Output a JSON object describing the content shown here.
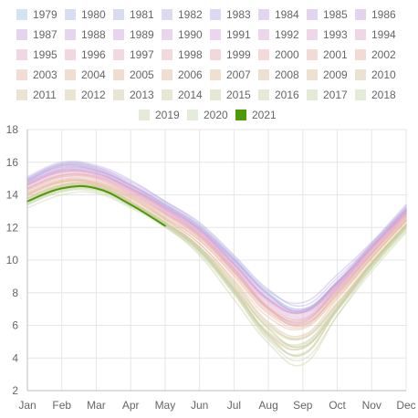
{
  "chart_data": {
    "type": "line",
    "title": "",
    "xlabel": "",
    "ylabel": "",
    "categories": [
      "Jan",
      "Feb",
      "Mar",
      "Apr",
      "May",
      "Jun",
      "Jul",
      "Aug",
      "Sep",
      "Oct",
      "Nov",
      "Dec"
    ],
    "y_ticks": [
      "2",
      "4",
      "6",
      "8",
      "10",
      "12",
      "14",
      "16",
      "18"
    ],
    "ylim": [
      2,
      18
    ],
    "grid": true,
    "legend_position": "top",
    "highlight_color": "#4e9a06",
    "series": [
      {
        "name": "1979",
        "color": "#9fbfe0",
        "values": [
          14.9,
          15.8,
          15.6,
          14.6,
          13.4,
          12.1,
          10.1,
          8.0,
          7.0,
          8.6,
          10.8,
          13.1
        ]
      },
      {
        "name": "1980",
        "color": "#a6b9e2",
        "values": [
          14.8,
          15.8,
          15.5,
          14.6,
          13.4,
          12.0,
          10.0,
          7.9,
          7.0,
          8.7,
          10.9,
          13.2
        ]
      },
      {
        "name": "1981",
        "color": "#acb3e2",
        "values": [
          14.9,
          15.7,
          15.5,
          14.5,
          13.3,
          11.9,
          10.0,
          7.9,
          6.8,
          8.6,
          10.8,
          13.0
        ]
      },
      {
        "name": "1982",
        "color": "#b2addf",
        "values": [
          15.0,
          15.9,
          15.7,
          14.8,
          13.6,
          12.2,
          10.2,
          8.1,
          7.4,
          9.1,
          11.1,
          13.4
        ]
      },
      {
        "name": "1983",
        "color": "#b8a8e0",
        "values": [
          15.1,
          16.0,
          15.8,
          14.9,
          13.6,
          12.3,
          10.3,
          8.2,
          7.2,
          8.9,
          11.0,
          13.3
        ]
      },
      {
        "name": "1984",
        "color": "#bda4e2",
        "values": [
          14.7,
          15.6,
          15.4,
          14.4,
          13.3,
          11.9,
          9.9,
          7.7,
          6.9,
          8.6,
          10.8,
          13.1
        ]
      },
      {
        "name": "1985",
        "color": "#c2a1e2",
        "values": [
          14.8,
          15.7,
          15.5,
          14.6,
          13.4,
          12.0,
          10.0,
          7.8,
          6.9,
          8.6,
          10.9,
          13.1
        ]
      },
      {
        "name": "1986",
        "color": "#c49fe0",
        "values": [
          15.0,
          15.9,
          15.7,
          14.7,
          13.5,
          12.1,
          10.1,
          7.9,
          6.9,
          8.7,
          11.0,
          13.2
        ]
      },
      {
        "name": "1987",
        "color": "#c79fdf",
        "values": [
          14.9,
          15.8,
          15.6,
          14.6,
          13.3,
          11.9,
          9.8,
          7.6,
          6.8,
          8.5,
          10.8,
          13.0
        ]
      },
      {
        "name": "1988",
        "color": "#cba1dd",
        "values": [
          14.7,
          15.5,
          15.4,
          14.4,
          13.2,
          11.8,
          9.8,
          7.6,
          6.8,
          8.6,
          10.8,
          13.1
        ]
      },
      {
        "name": "1989",
        "color": "#cfa2dc",
        "values": [
          14.6,
          15.5,
          15.3,
          14.4,
          13.2,
          11.9,
          9.8,
          7.6,
          6.7,
          8.4,
          10.7,
          12.9
        ]
      },
      {
        "name": "1990",
        "color": "#d3a3db",
        "values": [
          14.6,
          15.4,
          15.3,
          14.3,
          13.1,
          11.6,
          9.5,
          7.1,
          6.2,
          8.3,
          10.6,
          12.9
        ]
      },
      {
        "name": "1991",
        "color": "#d6a4d8",
        "values": [
          14.7,
          15.5,
          15.3,
          14.4,
          13.1,
          11.7,
          9.6,
          7.4,
          6.5,
          8.3,
          10.7,
          12.9
        ]
      },
      {
        "name": "1992",
        "color": "#d9a5d4",
        "values": [
          14.8,
          15.6,
          15.5,
          14.5,
          13.2,
          11.8,
          9.7,
          7.6,
          6.8,
          8.5,
          10.8,
          13.0
        ]
      },
      {
        "name": "1993",
        "color": "#dca5cf",
        "values": [
          14.6,
          15.4,
          15.3,
          14.4,
          13.2,
          11.8,
          9.7,
          7.5,
          6.6,
          8.4,
          10.7,
          12.9
        ]
      },
      {
        "name": "1994",
        "color": "#dfa6ca",
        "values": [
          14.5,
          15.3,
          15.2,
          14.3,
          13.0,
          11.6,
          9.5,
          7.3,
          6.4,
          8.3,
          10.6,
          12.8
        ]
      },
      {
        "name": "1995",
        "color": "#e1a7c5",
        "values": [
          14.4,
          15.2,
          15.1,
          14.2,
          12.9,
          11.5,
          9.3,
          7.0,
          6.0,
          8.0,
          10.4,
          12.7
        ]
      },
      {
        "name": "1996",
        "color": "#e3a8c0",
        "values": [
          14.6,
          15.4,
          15.2,
          14.3,
          13.1,
          11.7,
          9.7,
          7.5,
          6.8,
          8.5,
          10.8,
          13.0
        ]
      },
      {
        "name": "1997",
        "color": "#e4a9bb",
        "values": [
          14.3,
          15.1,
          15.0,
          14.1,
          12.9,
          11.5,
          9.4,
          7.1,
          6.2,
          8.2,
          10.5,
          12.8
        ]
      },
      {
        "name": "1998",
        "color": "#e5aab5",
        "values": [
          14.4,
          15.2,
          15.1,
          14.2,
          13.0,
          11.6,
          9.5,
          7.2,
          6.4,
          8.2,
          10.5,
          12.8
        ]
      },
      {
        "name": "1999",
        "color": "#e6abb0",
        "values": [
          14.3,
          15.1,
          15.0,
          14.0,
          12.8,
          11.4,
          9.3,
          7.0,
          6.1,
          8.0,
          10.4,
          12.6
        ]
      },
      {
        "name": "2000",
        "color": "#e6acab",
        "values": [
          14.4,
          15.2,
          15.1,
          14.1,
          12.9,
          11.5,
          9.4,
          7.1,
          6.3,
          8.1,
          10.4,
          12.7
        ]
      },
      {
        "name": "2001",
        "color": "#e6aea6",
        "values": [
          14.2,
          15.0,
          14.9,
          14.0,
          12.8,
          11.4,
          9.3,
          7.0,
          6.3,
          8.1,
          10.4,
          12.6
        ]
      },
      {
        "name": "2002",
        "color": "#e5b0a2",
        "values": [
          14.1,
          14.9,
          14.8,
          13.9,
          12.7,
          11.3,
          9.2,
          6.9,
          6.0,
          7.9,
          10.3,
          12.5
        ]
      },
      {
        "name": "2003",
        "color": "#e4b29e",
        "values": [
          14.0,
          14.8,
          14.7,
          13.8,
          12.6,
          11.2,
          9.1,
          6.8,
          6.1,
          7.9,
          10.2,
          12.4
        ]
      },
      {
        "name": "2004",
        "color": "#e3b49b",
        "values": [
          14.1,
          14.9,
          14.8,
          13.9,
          12.6,
          11.2,
          9.0,
          6.7,
          5.9,
          7.8,
          10.2,
          12.5
        ]
      },
      {
        "name": "2005",
        "color": "#e2b699",
        "values": [
          14.0,
          14.8,
          14.7,
          13.8,
          12.5,
          11.0,
          8.7,
          6.2,
          5.4,
          7.6,
          10.1,
          12.4
        ]
      },
      {
        "name": "2006",
        "color": "#e0b898",
        "values": [
          14.0,
          14.8,
          14.7,
          13.7,
          12.5,
          11.0,
          8.8,
          6.5,
          5.8,
          7.7,
          10.1,
          12.4
        ]
      },
      {
        "name": "2007",
        "color": "#ddbb97",
        "values": [
          13.9,
          14.7,
          14.6,
          13.6,
          12.3,
          10.7,
          8.2,
          5.4,
          4.2,
          7.0,
          9.8,
          12.2
        ]
      },
      {
        "name": "2008",
        "color": "#dbbd97",
        "values": [
          13.8,
          14.6,
          14.6,
          13.6,
          12.4,
          10.8,
          8.4,
          5.8,
          4.7,
          7.1,
          9.8,
          12.2
        ]
      },
      {
        "name": "2009",
        "color": "#d8c097",
        "values": [
          13.8,
          14.6,
          14.5,
          13.5,
          12.3,
          10.8,
          8.5,
          6.0,
          5.3,
          7.4,
          9.9,
          12.2
        ]
      },
      {
        "name": "2010",
        "color": "#d5c298",
        "values": [
          13.6,
          14.5,
          14.5,
          13.5,
          12.2,
          10.6,
          8.2,
          5.6,
          4.9,
          7.2,
          9.8,
          12.1
        ]
      },
      {
        "name": "2011",
        "color": "#d2c599",
        "values": [
          13.7,
          14.5,
          14.4,
          13.4,
          12.2,
          10.6,
          8.1,
          5.4,
          4.6,
          7.0,
          9.7,
          12.1
        ]
      },
      {
        "name": "2012",
        "color": "#d0c79a",
        "values": [
          13.8,
          14.6,
          14.6,
          13.6,
          12.1,
          10.3,
          7.6,
          4.9,
          3.6,
          6.6,
          9.5,
          12.0
        ]
      },
      {
        "name": "2013",
        "color": "#cdca9c",
        "values": [
          13.6,
          14.4,
          14.4,
          13.5,
          12.3,
          10.8,
          8.6,
          6.1,
          5.2,
          7.3,
          9.8,
          12.1
        ]
      },
      {
        "name": "2014",
        "color": "#cbcc9e",
        "values": [
          13.7,
          14.5,
          14.5,
          13.5,
          12.3,
          10.7,
          8.3,
          5.9,
          5.2,
          7.3,
          9.9,
          12.2
        ]
      },
      {
        "name": "2015",
        "color": "#c9cea0",
        "values": [
          13.6,
          14.4,
          14.5,
          13.5,
          12.2,
          10.6,
          8.1,
          5.5,
          4.6,
          7.0,
          9.7,
          12.0
        ]
      },
      {
        "name": "2016",
        "color": "#c8d0a2",
        "values": [
          13.5,
          14.3,
          14.3,
          13.4,
          12.1,
          10.5,
          8.0,
          5.3,
          4.2,
          6.9,
          9.5,
          11.8
        ]
      },
      {
        "name": "2017",
        "color": "#c6d2a5",
        "values": [
          13.4,
          14.2,
          14.2,
          13.3,
          12.2,
          10.6,
          8.2,
          5.5,
          4.8,
          7.1,
          9.7,
          12.0
        ]
      },
      {
        "name": "2018",
        "color": "#c5d4a7",
        "values": [
          13.5,
          14.3,
          14.4,
          13.4,
          12.2,
          10.7,
          8.3,
          5.8,
          4.7,
          7.0,
          9.7,
          12.0
        ]
      },
      {
        "name": "2019",
        "color": "#c4d6aa",
        "values": [
          13.4,
          14.2,
          14.3,
          13.3,
          12.1,
          10.5,
          8.0,
          5.2,
          4.3,
          6.9,
          9.6,
          11.9
        ]
      },
      {
        "name": "2020",
        "color": "#c3d8ad",
        "values": [
          13.2,
          14.0,
          14.1,
          13.2,
          12.0,
          10.4,
          7.9,
          5.1,
          3.9,
          6.6,
          9.3,
          11.7
        ]
      },
      {
        "name": "2021",
        "color": "#4e9a06",
        "values": [
          13.6,
          14.4,
          14.4,
          13.4,
          12.1,
          null,
          null,
          null,
          null,
          null,
          null,
          null
        ]
      }
    ]
  }
}
